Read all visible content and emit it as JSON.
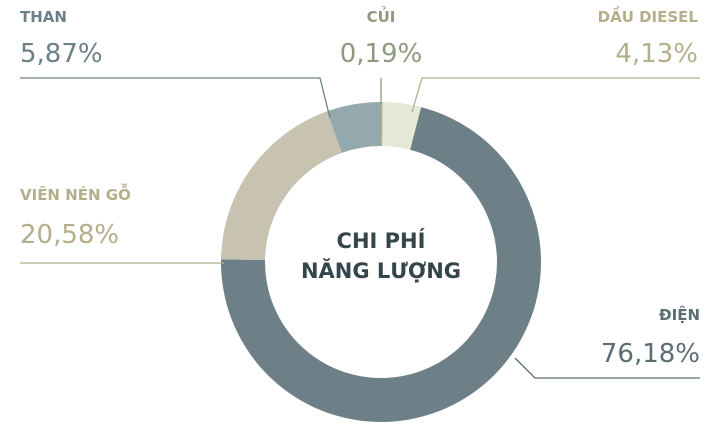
{
  "chart_data": {
    "type": "donut",
    "center_text": [
      "CHI PHÍ",
      "NĂNG LƯỢNG"
    ],
    "categories": [
      "CỦI",
      "DẦU DIESEL",
      "ĐIỆN",
      "VIÊN NÉN GỖ",
      "THAN"
    ],
    "values": [
      0.19,
      4.13,
      76.18,
      20.58,
      5.87
    ],
    "value_labels": [
      "0,19%",
      "4,13%",
      "76,18%",
      "20,58%",
      "5,87%"
    ],
    "colors": [
      "#b3b68f",
      "#e6e8d8",
      "#6e8087",
      "#c8c3b0",
      "#93a9ad"
    ],
    "label_colors": [
      "#8e9a80",
      "#b5ae8a",
      "#5c6d74",
      "#b5ae8a",
      "#6e8087"
    ]
  }
}
